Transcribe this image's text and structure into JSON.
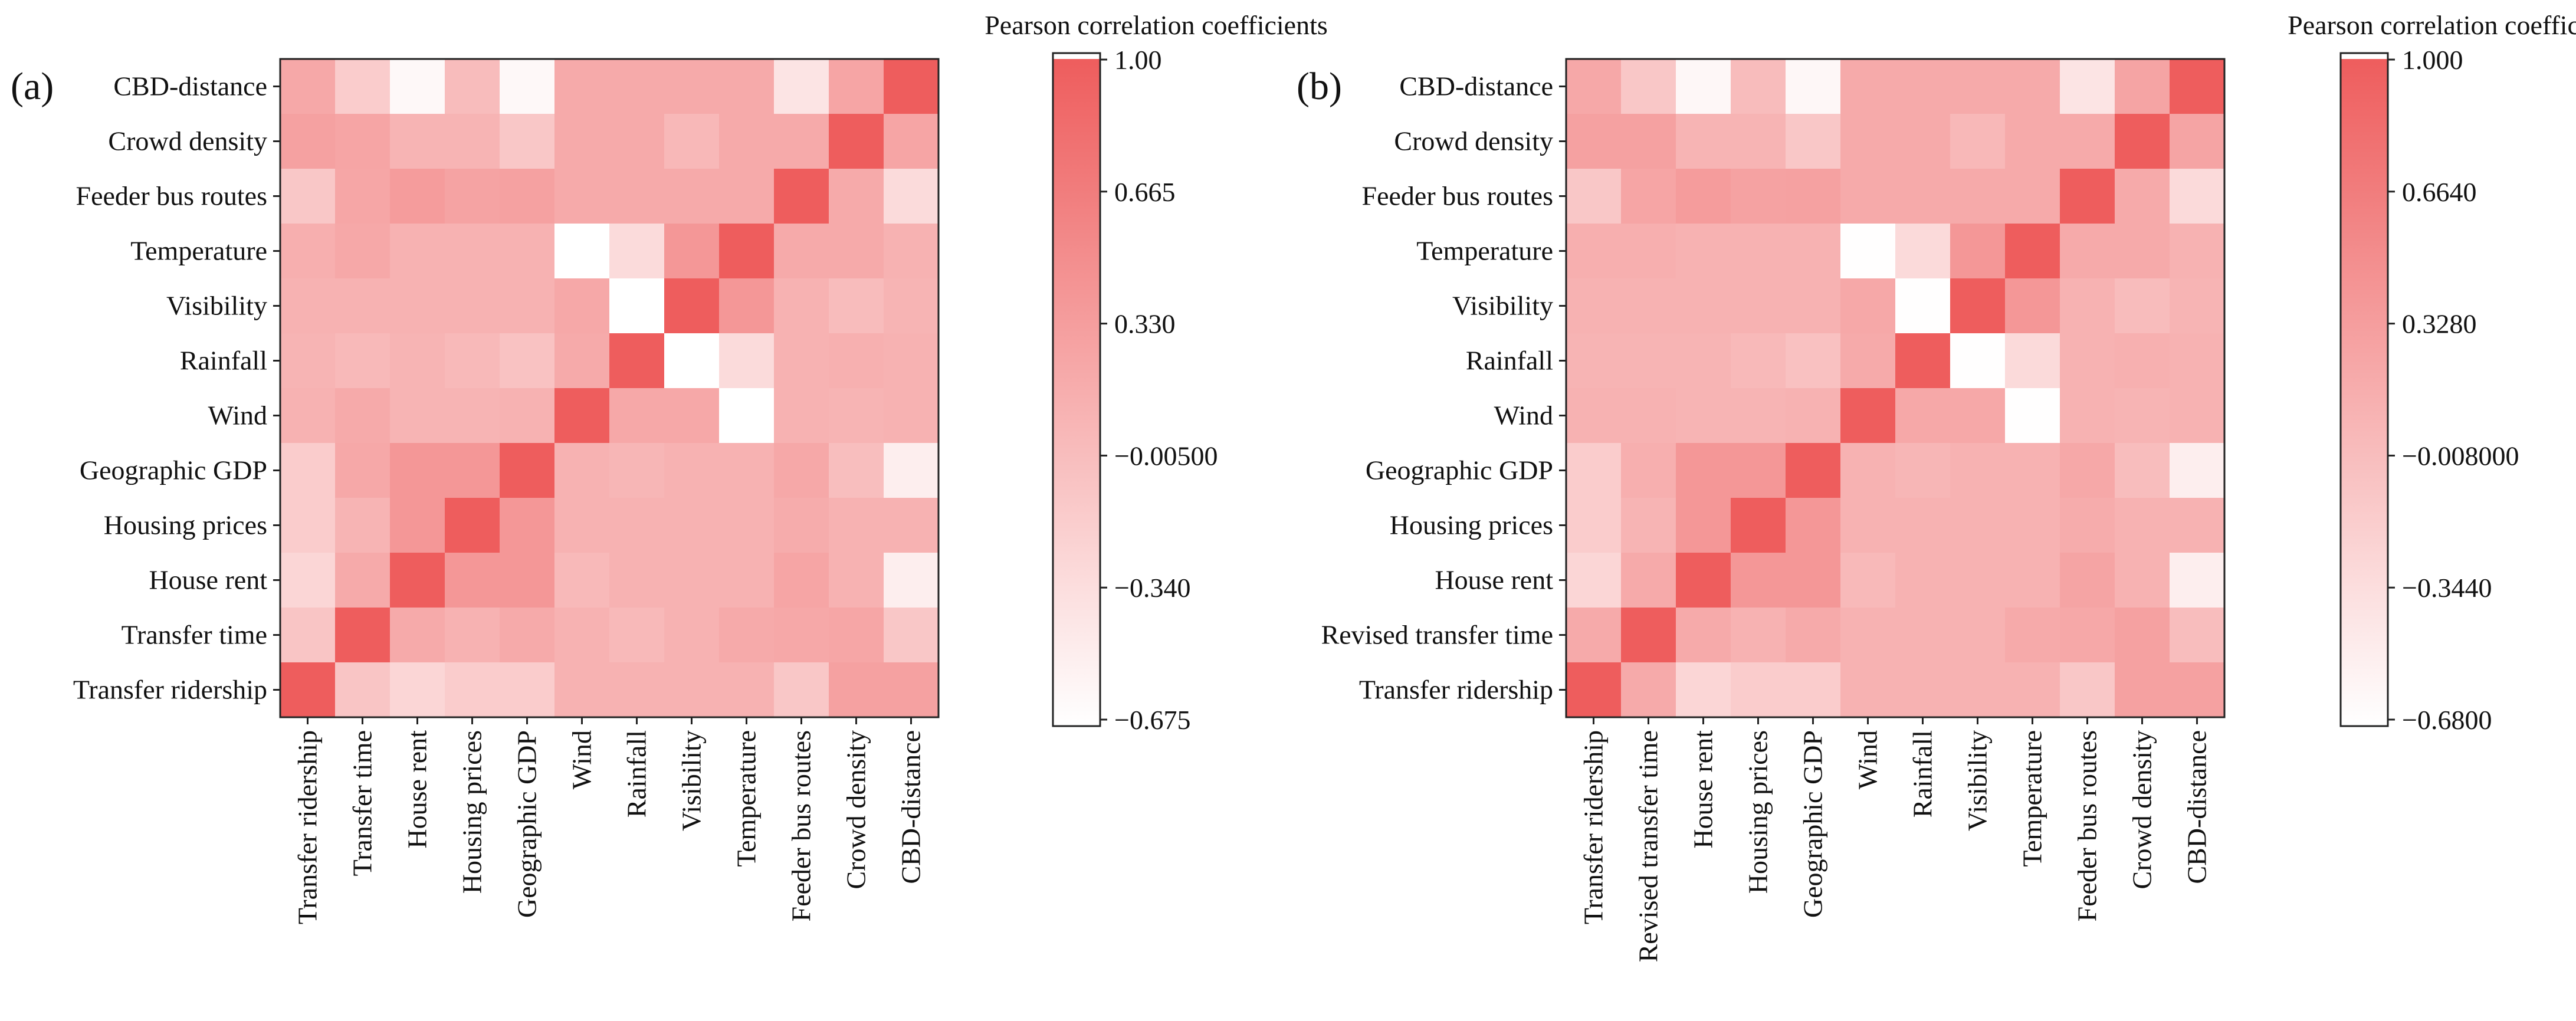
{
  "chart_data": [
    {
      "type": "heatmap",
      "panel_label": "(a)",
      "colorbar_title": "Pearson correlation coefficients",
      "colorbar_ticks": [
        "1.00",
        "0.665",
        "0.330",
        "−0.00500",
        "−0.340",
        "−0.675"
      ],
      "colorbar_tick_values": [
        1.0,
        0.665,
        0.33,
        -0.005,
        -0.34,
        -0.675
      ],
      "vmin": -0.675,
      "vmax": 1.0,
      "x_labels": [
        "Transfer ridership",
        "Transfer time",
        "House rent",
        "Housing prices",
        "Geographic GDP",
        "Wind",
        "Rainfall",
        "Visibility",
        "Temperature",
        "Feeder bus routes",
        "Crowd density",
        "CBD-distance"
      ],
      "y_labels": [
        "CBD-distance",
        "Crowd density",
        "Feeder bus routes",
        "Temperature",
        "Visibility",
        "Rainfall",
        "Wind",
        "Geographic GDP",
        "Housing prices",
        "House rent",
        "Transfer time",
        "Transfer ridership"
      ],
      "values": [
        [
          0.22,
          -0.15,
          -0.6,
          0.02,
          -0.6,
          0.2,
          0.2,
          0.2,
          0.2,
          -0.4,
          0.26,
          1.0
        ],
        [
          0.3,
          0.26,
          0.1,
          0.1,
          -0.1,
          0.2,
          0.2,
          0.06,
          0.2,
          0.2,
          1.0,
          0.26
        ],
        [
          -0.1,
          0.25,
          0.35,
          0.28,
          0.3,
          0.2,
          0.2,
          0.2,
          0.2,
          1.0,
          0.2,
          -0.3
        ],
        [
          0.15,
          0.22,
          0.12,
          0.12,
          0.12,
          -0.67,
          -0.3,
          0.4,
          1.0,
          0.2,
          0.2,
          0.12
        ],
        [
          0.12,
          0.12,
          0.12,
          0.12,
          0.12,
          0.22,
          -0.67,
          1.0,
          0.4,
          0.12,
          0.02,
          0.1
        ],
        [
          0.1,
          0.05,
          0.1,
          0.05,
          -0.04,
          0.2,
          1.0,
          -0.67,
          -0.3,
          0.12,
          0.14,
          0.12
        ],
        [
          0.12,
          0.2,
          0.1,
          0.1,
          0.12,
          1.0,
          0.22,
          0.22,
          -0.67,
          0.12,
          0.1,
          0.12
        ],
        [
          -0.15,
          0.22,
          0.4,
          0.4,
          1.0,
          0.12,
          0.08,
          0.12,
          0.12,
          0.22,
          0.0,
          -0.5
        ],
        [
          -0.15,
          0.1,
          0.4,
          1.0,
          0.4,
          0.12,
          0.12,
          0.12,
          0.12,
          0.18,
          0.12,
          0.12
        ],
        [
          -0.25,
          0.2,
          1.0,
          0.4,
          0.4,
          0.05,
          0.12,
          0.12,
          0.12,
          0.26,
          0.12,
          -0.5
        ],
        [
          -0.08,
          1.0,
          0.2,
          0.12,
          0.2,
          0.12,
          0.05,
          0.12,
          0.2,
          0.22,
          0.25,
          -0.1
        ],
        [
          1.0,
          -0.08,
          -0.25,
          -0.15,
          -0.15,
          0.12,
          0.12,
          0.12,
          0.12,
          -0.1,
          0.3,
          0.3
        ]
      ]
    },
    {
      "type": "heatmap",
      "panel_label": "(b)",
      "colorbar_title": "Pearson correlation coefficient",
      "colorbar_ticks": [
        "1.000",
        "0.6640",
        "0.3280",
        "−0.008000",
        "−0.3440",
        "−0.6800"
      ],
      "colorbar_tick_values": [
        1.0,
        0.664,
        0.328,
        -0.008,
        -0.344,
        -0.68
      ],
      "vmin": -0.68,
      "vmax": 1.0,
      "x_labels": [
        "Transfer ridership",
        "Revised transfer time",
        "House rent",
        "Housing prices",
        "Geographic GDP",
        "Wind",
        "Rainfall",
        "Visibility",
        "Temperature",
        "Feeder bus routes",
        "Crowd density",
        "CBD-distance"
      ],
      "y_labels": [
        "CBD-distance",
        "Crowd density",
        "Feeder bus routes",
        "Temperature",
        "Visibility",
        "Rainfall",
        "Wind",
        "Geographic GDP",
        "Housing prices",
        "House rent",
        "Revised transfer time",
        "Transfer ridership"
      ],
      "values": [
        [
          0.22,
          -0.1,
          -0.6,
          0.02,
          -0.6,
          0.2,
          0.2,
          0.2,
          0.2,
          -0.4,
          0.26,
          1.0
        ],
        [
          0.3,
          0.3,
          0.1,
          0.1,
          -0.1,
          0.2,
          0.2,
          0.06,
          0.2,
          0.2,
          1.0,
          0.26
        ],
        [
          -0.1,
          0.25,
          0.35,
          0.28,
          0.3,
          0.2,
          0.2,
          0.2,
          0.2,
          1.0,
          0.2,
          -0.3
        ],
        [
          0.15,
          0.15,
          0.12,
          0.12,
          0.12,
          -0.67,
          -0.3,
          0.4,
          1.0,
          0.2,
          0.2,
          0.12
        ],
        [
          0.12,
          0.12,
          0.12,
          0.12,
          0.12,
          0.22,
          -0.67,
          1.0,
          0.4,
          0.12,
          0.02,
          0.1
        ],
        [
          0.1,
          0.1,
          0.1,
          0.05,
          -0.04,
          0.2,
          1.0,
          -0.67,
          -0.3,
          0.12,
          0.14,
          0.12
        ],
        [
          0.12,
          0.12,
          0.1,
          0.1,
          0.12,
          1.0,
          0.22,
          0.22,
          -0.67,
          0.12,
          0.1,
          0.12
        ],
        [
          -0.15,
          0.15,
          0.4,
          0.4,
          1.0,
          0.12,
          0.08,
          0.12,
          0.12,
          0.22,
          0.0,
          -0.5
        ],
        [
          -0.15,
          0.1,
          0.4,
          1.0,
          0.4,
          0.12,
          0.12,
          0.12,
          0.12,
          0.18,
          0.12,
          0.12
        ],
        [
          -0.25,
          0.2,
          1.0,
          0.4,
          0.4,
          0.05,
          0.12,
          0.12,
          0.12,
          0.26,
          0.12,
          -0.5
        ],
        [
          0.2,
          1.0,
          0.2,
          0.12,
          0.2,
          0.12,
          0.12,
          0.12,
          0.2,
          0.22,
          0.3,
          0.0
        ],
        [
          1.0,
          0.2,
          -0.25,
          -0.15,
          -0.15,
          0.12,
          0.12,
          0.12,
          0.12,
          -0.1,
          0.3,
          0.3
        ]
      ]
    }
  ]
}
